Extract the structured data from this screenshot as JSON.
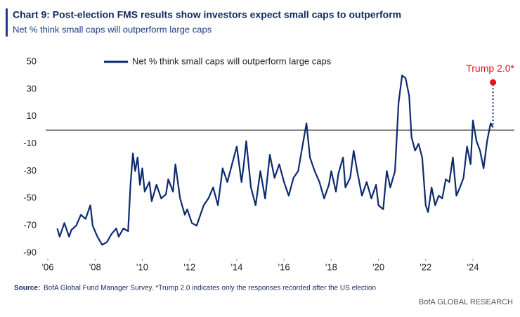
{
  "chart_data": {
    "type": "line",
    "title": "Chart 9: Post-election FMS results show investors expect small caps to outperform",
    "subtitle": "Net % think small caps will outperform large caps",
    "source_label": "Source:",
    "source": "BofA Global Fund Manager Survey. *Trump 2.0 indicates only the responses recorded after the US election",
    "footer": "BofA GLOBAL RESEARCH",
    "x": [
      2006.4,
      2006.5,
      2006.7,
      2006.9,
      2007.0,
      2007.2,
      2007.4,
      2007.6,
      2007.8,
      2007.9,
      2008.1,
      2008.3,
      2008.5,
      2008.7,
      2008.9,
      2009.0,
      2009.2,
      2009.4,
      2009.5,
      2009.6,
      2009.7,
      2009.8,
      2009.9,
      2010.0,
      2010.1,
      2010.3,
      2010.4,
      2010.6,
      2010.8,
      2011.0,
      2011.1,
      2011.3,
      2011.4,
      2011.6,
      2011.8,
      2011.9,
      2012.1,
      2012.3,
      2012.4,
      2012.6,
      2012.8,
      2013.0,
      2013.2,
      2013.4,
      2013.6,
      2013.8,
      2014.0,
      2014.2,
      2014.3,
      2014.4,
      2014.6,
      2014.8,
      2015.0,
      2015.2,
      2015.4,
      2015.6,
      2015.8,
      2016.0,
      2016.2,
      2016.4,
      2016.6,
      2016.8,
      2016.95,
      2017.1,
      2017.3,
      2017.5,
      2017.7,
      2017.9,
      2018.0,
      2018.2,
      2018.3,
      2018.5,
      2018.6,
      2018.8,
      2018.95,
      2019.1,
      2019.3,
      2019.5,
      2019.7,
      2019.9,
      2020.0,
      2020.2,
      2020.35,
      2020.5,
      2020.7,
      2020.85,
      2021.0,
      2021.15,
      2021.3,
      2021.4,
      2021.55,
      2021.7,
      2021.85,
      2022.0,
      2022.1,
      2022.25,
      2022.4,
      2022.55,
      2022.7,
      2022.85,
      2023.0,
      2023.15,
      2023.3,
      2023.45,
      2023.6,
      2023.75,
      2023.9,
      2024.0,
      2024.15,
      2024.3,
      2024.45,
      2024.6,
      2024.75,
      2024.85
    ],
    "series": [
      {
        "name": "Net % think small caps will outperform large caps",
        "color": "#0e2a6e",
        "values": [
          -72,
          -78,
          -68,
          -78,
          -73,
          -70,
          -62,
          -65,
          -55,
          -70,
          -78,
          -84,
          -82,
          -76,
          -72,
          -78,
          -72,
          -74,
          -40,
          -17,
          -30,
          -20,
          -40,
          -28,
          -45,
          -38,
          -52,
          -40,
          -50,
          -47,
          -36,
          -45,
          -25,
          -50,
          -62,
          -58,
          -68,
          -70,
          -65,
          -55,
          -50,
          -42,
          -55,
          -28,
          -38,
          -25,
          -12,
          -38,
          -25,
          -8,
          -42,
          -55,
          -30,
          -50,
          -18,
          -35,
          -25,
          -38,
          -48,
          -35,
          -30,
          -10,
          5,
          -20,
          -30,
          -38,
          -50,
          -40,
          -30,
          -45,
          -32,
          -20,
          -42,
          -35,
          -15,
          -30,
          -48,
          -38,
          -50,
          -40,
          -55,
          -58,
          -30,
          -42,
          -30,
          20,
          40,
          38,
          25,
          -5,
          -15,
          -10,
          -20,
          -55,
          -60,
          -42,
          -55,
          -48,
          -50,
          -36,
          -38,
          -20,
          -48,
          -42,
          -35,
          -12,
          -25,
          7,
          -8,
          -15,
          -28,
          -8,
          5,
          2
        ]
      }
    ],
    "annotation": {
      "text": "Trump 2.0*",
      "x": 2024.85,
      "value": 35,
      "color": "#e8101a"
    },
    "reference_line": 0,
    "xlim": [
      2005.76,
      2025.1
    ],
    "xticks": [
      {
        "value": 2006,
        "label": "'06"
      },
      {
        "value": 2008,
        "label": "'08"
      },
      {
        "value": 2010,
        "label": "'10"
      },
      {
        "value": 2012,
        "label": "'12"
      },
      {
        "value": 2014,
        "label": "'14"
      },
      {
        "value": 2016,
        "label": "'16"
      },
      {
        "value": 2018,
        "label": "'18"
      },
      {
        "value": 2020,
        "label": "'20"
      },
      {
        "value": 2022,
        "label": "'22"
      },
      {
        "value": 2024,
        "label": "'24"
      }
    ],
    "ylim": [
      -90,
      50
    ],
    "yticks": [
      -90,
      -70,
      -50,
      -30,
      -10,
      10,
      30,
      50
    ],
    "grid": false
  }
}
